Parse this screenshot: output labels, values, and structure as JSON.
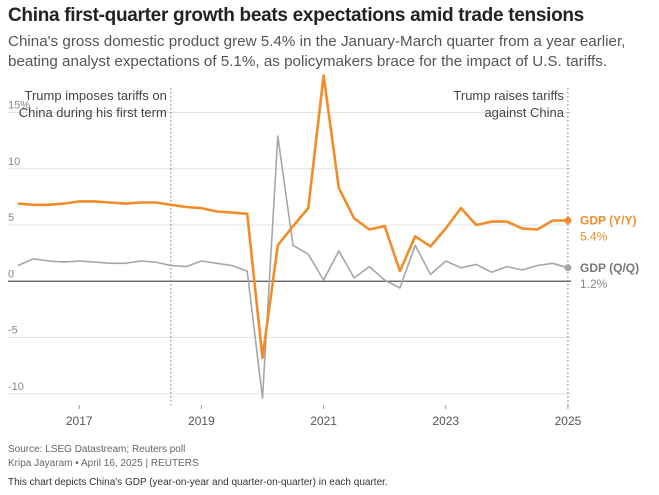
{
  "header": {
    "title": "China first-quarter growth beats expectations amid trade tensions",
    "subtitle": "China's gross domestic product grew 5.4% in the January-March quarter from a year earlier, beating analyst expectations of 5.1%, as policymakers brace for the impact of U.S. tariffs."
  },
  "footer": {
    "source": "Source: LSEG Datastream; Reuters poll",
    "byline": "Kripa Jayaram • April 16, 2025 | REUTERS",
    "description": "This chart depicts China's GDP (year-on-year and quarter-on-quarter) in each quarter."
  },
  "colors": {
    "yoy": "#F28C28",
    "qoq": "#A6A6A6",
    "grid": "#E3E3E3",
    "zero": "#555555",
    "text": "#555555"
  },
  "chart_data": {
    "type": "line",
    "x_start": 2016.0,
    "x_step": 0.25,
    "xlim": [
      2015.9,
      2025.05
    ],
    "ylim": [
      -11,
      17
    ],
    "x_ticks": [
      2017,
      2019,
      2021,
      2023,
      2025
    ],
    "x_tick_labels": [
      "2017",
      "2019",
      "2021",
      "2023",
      "2025"
    ],
    "y_ticks": [
      15,
      10,
      5,
      0,
      -5,
      -10
    ],
    "y_tick_labels": [
      "15%",
      "10",
      "5",
      "0",
      "-5",
      "-10"
    ],
    "grid": true,
    "series": [
      {
        "name": "GDP (Y/Y)",
        "key": "yoy",
        "last_label": "5.4%",
        "values": [
          6.9,
          6.8,
          6.8,
          6.9,
          7.1,
          7.1,
          7.0,
          6.9,
          7.0,
          7.0,
          6.8,
          6.6,
          6.5,
          6.2,
          6.1,
          6.0,
          -6.8,
          3.2,
          4.9,
          6.5,
          18.3,
          8.3,
          5.6,
          4.6,
          4.9,
          0.9,
          4.0,
          3.1,
          4.7,
          6.5,
          5.0,
          5.3,
          5.3,
          4.7,
          4.6,
          5.4,
          5.4
        ]
      },
      {
        "name": "GDP (Q/Q)",
        "key": "qoq",
        "last_label": "1.2%",
        "values": [
          1.4,
          2.0,
          1.8,
          1.7,
          1.8,
          1.7,
          1.6,
          1.6,
          1.8,
          1.7,
          1.4,
          1.3,
          1.8,
          1.6,
          1.4,
          0.9,
          -10.4,
          12.9,
          3.2,
          2.4,
          0.1,
          2.7,
          0.3,
          1.3,
          0.1,
          -0.6,
          3.2,
          0.6,
          1.8,
          1.2,
          1.5,
          0.8,
          1.3,
          1.0,
          1.4,
          1.6,
          1.2
        ]
      }
    ],
    "annotations": [
      {
        "x": 2018.5,
        "lines": [
          "Trump imposes tariffs on",
          "China during his first term"
        ],
        "align": "right"
      },
      {
        "x": 2025.0,
        "lines": [
          "Trump raises tariffs",
          "against China"
        ],
        "align": "right"
      }
    ]
  }
}
